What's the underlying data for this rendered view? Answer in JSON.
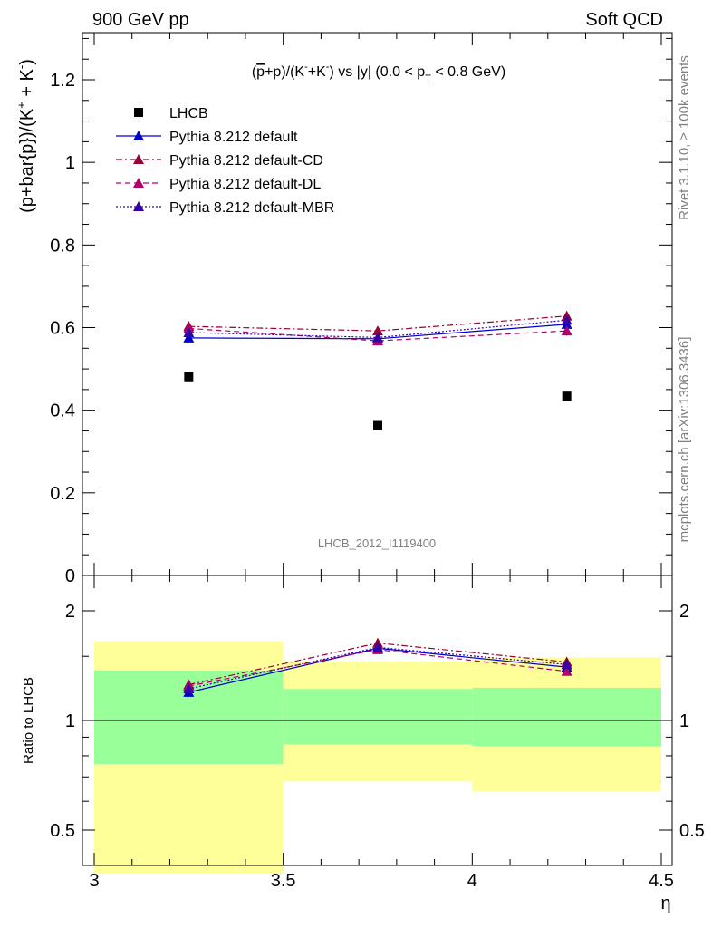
{
  "header": {
    "left": "900 GeV pp",
    "right": "Soft QCD"
  },
  "side_labels": {
    "rivet": "Rivet 3.1.10, ≥ 100k events",
    "source": "mcplots.cern.ch [arXiv:1306.3436]"
  },
  "chart_data": [
    {
      "type": "scatter",
      "panel": "main",
      "title": "(p̄+p)/(K⁻+K⁻) vs |y| (0.0 < pT < 0.8 GeV)",
      "title_parts": {
        "pre": "(",
        "pbar": "p",
        "mid": "+p)/(K",
        "sup1": "-",
        "mid2": "+K",
        "sup2": "-",
        "mid3": ") vs |y| (0.0 < p",
        "sub": "T",
        "post": " < 0.8 GeV)"
      },
      "ylabel": "(p+bar{p})/(K⁺ + K⁻)",
      "ylabel_parts": {
        "pre": "(p+bar{p})/(K",
        "sup1": "+",
        "mid": " + K",
        "sup2": "-",
        "post": ")"
      },
      "xlabel": "η",
      "analysis_id": "LHCB_2012_I1119400",
      "xlim": [
        3.0,
        4.5
      ],
      "ylim": [
        0.0,
        1.32
      ],
      "yticks": [
        "0",
        "0.2",
        "0.4",
        "0.6",
        "0.8",
        "1",
        "1.2"
      ],
      "ytick_values": [
        0,
        0.2,
        0.4,
        0.6,
        0.8,
        1.0,
        1.2
      ],
      "xticks": [
        "3",
        "3.5",
        "4",
        "4.5"
      ],
      "xtick_values": [
        3.0,
        3.5,
        4.0,
        4.5
      ],
      "x": [
        3.25,
        3.75,
        4.25
      ],
      "series": [
        {
          "name": "LHCB",
          "marker": "square",
          "line": "none",
          "color": "#000000",
          "values": [
            0.481,
            0.363,
            0.434
          ],
          "errors": [
            0.0,
            0.0,
            0.0
          ]
        },
        {
          "name": "Pythia 8.212 default",
          "marker": "triangle",
          "line": "solid",
          "color": "#0000cc",
          "values": [
            0.575,
            0.573,
            0.608
          ],
          "errors": [
            0.01,
            0.008,
            0.01
          ]
        },
        {
          "name": "Pythia 8.212 default-CD",
          "marker": "triangle",
          "line": "dashdot",
          "color": "#990033",
          "values": [
            0.603,
            0.592,
            0.628
          ],
          "errors": [
            0.012,
            0.01,
            0.012
          ]
        },
        {
          "name": "Pythia 8.212 default-DL",
          "marker": "triangle",
          "line": "dashed",
          "color": "#b0006a",
          "values": [
            0.598,
            0.568,
            0.592
          ],
          "errors": [
            0.012,
            0.01,
            0.012
          ]
        },
        {
          "name": "Pythia 8.212 default-MBR",
          "marker": "triangle",
          "line": "dotted",
          "color": "#3300aa",
          "values": [
            0.588,
            0.576,
            0.618
          ],
          "errors": [
            0.01,
            0.008,
            0.01
          ]
        }
      ]
    },
    {
      "type": "scatter",
      "panel": "ratio",
      "ylabel": "Ratio to LHCB",
      "xlim": [
        3.0,
        4.5
      ],
      "ylim": [
        0.4,
        2.3
      ],
      "yscale": "log",
      "yticks": [
        "0.5",
        "1",
        "2"
      ],
      "ytick_values": [
        0.5,
        1.0,
        2.0
      ],
      "reference_line": 1.0,
      "bands": [
        {
          "x0": 3.0,
          "x1": 3.5,
          "green": [
            0.76,
            1.37
          ],
          "yellow": [
            0.38,
            1.65
          ]
        },
        {
          "x0": 3.5,
          "x1": 4.0,
          "green": [
            0.86,
            1.22
          ],
          "yellow": [
            0.68,
            1.45
          ]
        },
        {
          "x0": 4.0,
          "x1": 4.5,
          "green": [
            0.85,
            1.23
          ],
          "yellow": [
            0.64,
            1.49
          ]
        }
      ],
      "x": [
        3.25,
        3.75,
        4.25
      ],
      "series": [
        {
          "name": "Pythia 8.212 default",
          "color": "#0000cc",
          "line": "solid",
          "values": [
            1.195,
            1.578,
            1.401
          ]
        },
        {
          "name": "Pythia 8.212 default-CD",
          "color": "#990033",
          "line": "dashdot",
          "values": [
            1.254,
            1.631,
            1.447
          ]
        },
        {
          "name": "Pythia 8.212 default-DL",
          "color": "#b0006a",
          "line": "dashed",
          "values": [
            1.243,
            1.565,
            1.364
          ]
        },
        {
          "name": "Pythia 8.212 default-MBR",
          "color": "#3300aa",
          "line": "dotted",
          "values": [
            1.222,
            1.587,
            1.424
          ]
        }
      ]
    }
  ],
  "colors": {
    "band_green": "#99ff99",
    "band_yellow": "#ffff99",
    "axis": "#000000",
    "watermark": "#808080"
  }
}
